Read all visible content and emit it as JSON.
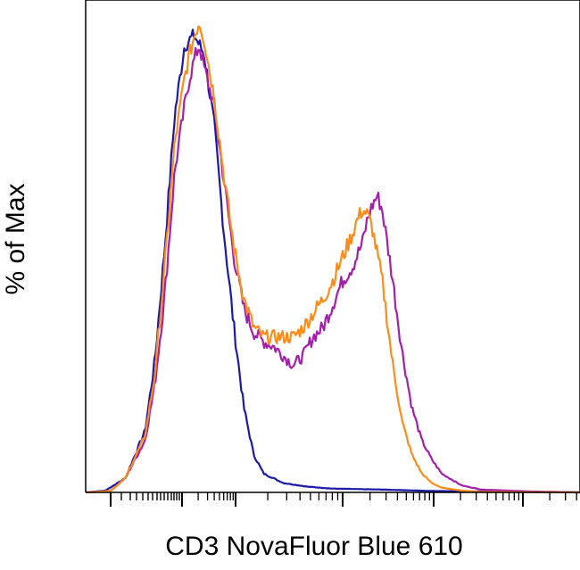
{
  "chart_data": {
    "type": "line",
    "title": "",
    "xlabel": "CD3 NovaFluor Blue 610",
    "ylabel": "% of Max",
    "x_scale": "log (biexponential), unlabeled tick marks",
    "ylim": [
      0,
      100
    ],
    "grid": false,
    "legend": "none",
    "series": [
      {
        "color": "#1a1aa6",
        "x": [
          0,
          4,
          8,
          12,
          14,
          16,
          18,
          20,
          22,
          24,
          26,
          28,
          30,
          32,
          34,
          36,
          40,
          45,
          50,
          60,
          70,
          100
        ],
        "y": [
          0,
          0.4,
          3,
          13,
          28,
          52,
          80,
          95,
          97,
          93,
          78,
          55,
          35,
          18,
          8,
          4,
          2,
          1.2,
          0.8,
          0.6,
          0.3,
          0
        ]
      },
      {
        "color": "#a51eaa",
        "x": [
          0,
          5,
          8,
          12,
          14,
          16,
          18,
          20,
          21,
          22,
          23,
          24,
          26,
          28,
          30,
          32,
          34,
          36,
          38,
          40,
          42,
          44,
          46,
          48,
          50,
          52,
          54,
          56,
          57,
          58,
          59,
          60,
          62,
          64,
          66,
          68,
          70,
          72,
          76,
          80,
          90,
          100
        ],
        "y": [
          0,
          0.3,
          3,
          11,
          23,
          42,
          68,
          82,
          88,
          92,
          95,
          90,
          82,
          66,
          50,
          39,
          34,
          32,
          31,
          29,
          27,
          29,
          33,
          35,
          40,
          45,
          48,
          53,
          58,
          61,
          63,
          60,
          46,
          30,
          18,
          11,
          7,
          4,
          1.5,
          0.6,
          0.2,
          0
        ]
      },
      {
        "color": "#ff8c19",
        "x": [
          0,
          5,
          8,
          12,
          14,
          16,
          18,
          20,
          21,
          22,
          23,
          24,
          26,
          28,
          30,
          32,
          34,
          36,
          38,
          40,
          42,
          44,
          46,
          48,
          50,
          52,
          54,
          55,
          56,
          57,
          58,
          60,
          62,
          64,
          66,
          68,
          70,
          72,
          76,
          80,
          100
        ],
        "y": [
          0,
          0.3,
          3,
          12,
          25,
          48,
          74,
          88,
          93,
          97,
          100,
          96,
          84,
          67,
          52,
          41,
          35,
          33,
          33,
          33,
          33,
          35,
          38,
          41,
          45,
          50,
          55,
          58,
          60,
          59,
          56,
          45,
          28,
          15,
          8,
          4,
          2,
          1,
          0.4,
          0.1,
          0
        ]
      }
    ]
  }
}
